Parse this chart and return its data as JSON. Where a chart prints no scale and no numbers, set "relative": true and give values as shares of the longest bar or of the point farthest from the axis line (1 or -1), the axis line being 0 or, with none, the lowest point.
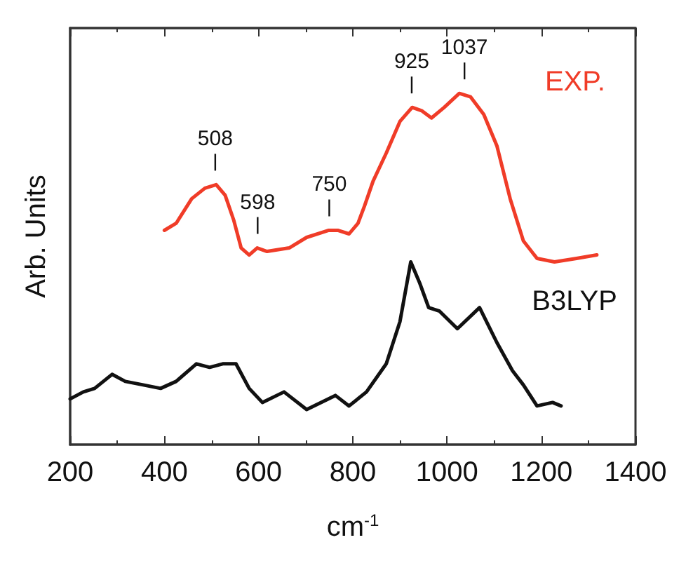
{
  "chart_data": {
    "type": "line",
    "relative": true,
    "xlabel": "cm$^{-1}$",
    "ylabel": "Arb. Units",
    "xlim": [
      200,
      1400
    ],
    "xticks": [
      200,
      400,
      600,
      800,
      1000,
      1200,
      1400
    ],
    "tick_labels": "x",
    "grid": false,
    "legend": false,
    "marker": "none",
    "line_style": "solid",
    "series": [
      {
        "name": "EXP.",
        "color": "#f03c28",
        "x": [
          400,
          425,
          458,
          486,
          510,
          529,
          547,
          563,
          580,
          597,
          618,
          665,
          702,
          749,
          768,
          792,
          811,
          825,
          843,
          871,
          900,
          926,
          947,
          967,
          994,
          1026,
          1050,
          1078,
          1106,
          1134,
          1162,
          1191,
          1228,
          1275,
          1318
        ],
        "values": [
          0.61,
          0.63,
          0.7,
          0.73,
          0.74,
          0.71,
          0.64,
          0.56,
          0.54,
          0.56,
          0.55,
          0.56,
          0.59,
          0.61,
          0.61,
          0.6,
          0.63,
          0.68,
          0.75,
          0.83,
          0.92,
          0.96,
          0.95,
          0.93,
          0.96,
          1.0,
          0.99,
          0.94,
          0.85,
          0.7,
          0.58,
          0.53,
          0.52,
          0.53,
          0.54
        ]
      },
      {
        "name": "B3LYP",
        "color": "#111111",
        "x": [
          200,
          228,
          252,
          289,
          317,
          355,
          392,
          425,
          468,
          496,
          524,
          552,
          580,
          608,
          654,
          702,
          763,
          792,
          829,
          871,
          900,
          923,
          942,
          961,
          984,
          1022,
          1069,
          1106,
          1139,
          1162,
          1191,
          1224,
          1242
        ],
        "values": [
          0.13,
          0.15,
          0.16,
          0.2,
          0.18,
          0.17,
          0.16,
          0.18,
          0.23,
          0.22,
          0.23,
          0.23,
          0.16,
          0.12,
          0.15,
          0.1,
          0.14,
          0.11,
          0.15,
          0.23,
          0.35,
          0.52,
          0.46,
          0.39,
          0.38,
          0.33,
          0.39,
          0.29,
          0.21,
          0.17,
          0.11,
          0.12,
          0.11
        ]
      }
    ],
    "annotations": [
      {
        "text": "508",
        "x": 508,
        "y": 0.74
      },
      {
        "text": "598",
        "x": 598,
        "y": 0.56
      },
      {
        "text": "750",
        "x": 750,
        "y": 0.61
      },
      {
        "text": "925",
        "x": 925,
        "y": 0.96
      },
      {
        "text": "1037",
        "x": 1037,
        "y": 1.0
      }
    ]
  }
}
